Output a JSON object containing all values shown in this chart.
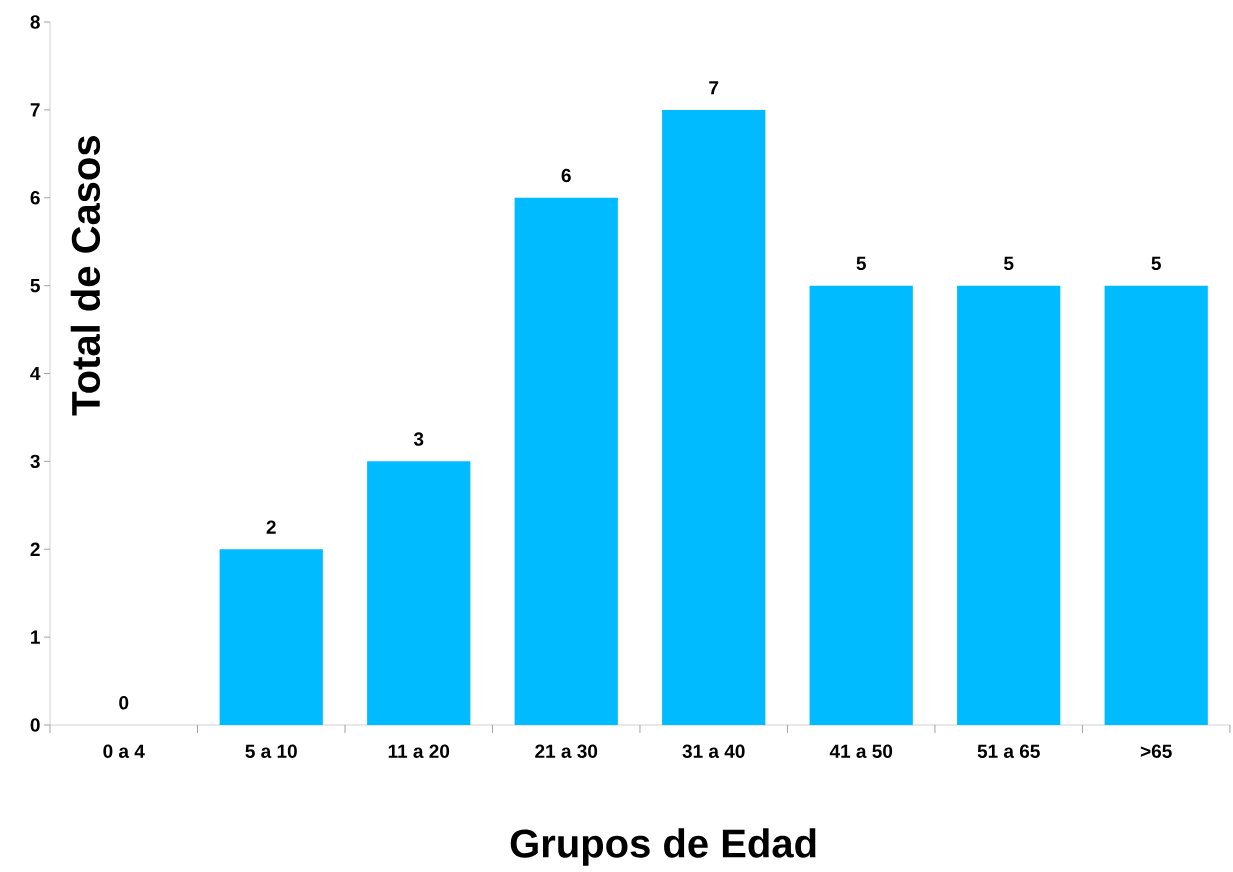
{
  "chart_data": {
    "type": "bar",
    "xlabel": "Grupos de Edad",
    "ylabel": "Total de Casos",
    "categories": [
      "0 a 4",
      "5 a 10",
      "11 a 20",
      "21 a 30",
      "31 a 40",
      "41 a 50",
      "51 a 65",
      ">65"
    ],
    "values": [
      0,
      2,
      3,
      6,
      7,
      5,
      5,
      5
    ],
    "color": "#00bbff",
    "ylim": [
      0,
      8
    ],
    "yticks": [
      0,
      1,
      2,
      3,
      4,
      5,
      6,
      7,
      8
    ],
    "data_labels": true
  }
}
